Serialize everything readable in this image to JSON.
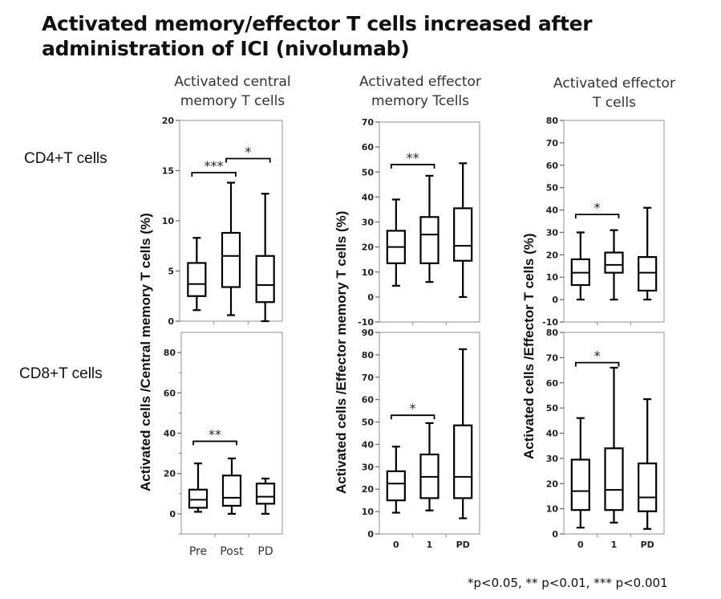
{
  "title_line1": "Activated memory/effector T cells increased after",
  "title_line2": "administration of ICI (nivolumab)",
  "footnote": "*p<0.05, ** p<0.01, *** p<0.001",
  "row_labels": [
    "CD4+T cells",
    "CD8+T cells"
  ],
  "column_titles": [
    [
      "Activated central",
      "memory T cells"
    ],
    [
      "Activated effector",
      "memory Tcells"
    ],
    [
      "Activated effector",
      "T cells"
    ]
  ],
  "y_labels": [
    "Activated cells /Central memory T cells (%)",
    "Activated cells /Effector memory T cells (%)",
    "Activated cells /Effector T cells (%)"
  ],
  "chart_data": [
    {
      "type": "box",
      "name": "central-memory-cd4",
      "row": "CD4+T cells",
      "column": "Activated central memory T cells",
      "categories": [
        "Pre",
        "Post",
        "PD"
      ],
      "show_categories": false,
      "ylim": [
        0,
        20
      ],
      "yticks": [
        0,
        5,
        10,
        15,
        20
      ],
      "boxes": [
        {
          "min": 1.1,
          "q1": 2.5,
          "median": 3.7,
          "q3": 5.8,
          "max": 8.3
        },
        {
          "min": 0.6,
          "q1": 3.4,
          "median": 6.5,
          "q3": 8.8,
          "max": 13.8
        },
        {
          "min": 0.0,
          "q1": 1.9,
          "median": 3.6,
          "q3": 6.5,
          "max": 12.7
        }
      ],
      "significance": [
        {
          "from": 0,
          "to": 1,
          "label": "***",
          "y": 14.8
        },
        {
          "from": 1,
          "to": 2,
          "label": "*",
          "y": 16.2
        }
      ]
    },
    {
      "type": "box",
      "name": "central-memory-cd8",
      "row": "CD8+T cells",
      "column": "Activated central memory T cells",
      "categories": [
        "Pre",
        "Post",
        "PD"
      ],
      "show_categories": true,
      "category_style": "plain",
      "ylim": [
        -10,
        90
      ],
      "yticks": [
        0,
        20,
        40,
        60,
        80
      ],
      "minor_yticks": [
        -10,
        10,
        30,
        50,
        70
      ],
      "boxes": [
        {
          "min": 1,
          "q1": 3,
          "median": 7,
          "q3": 12,
          "max": 25
        },
        {
          "min": 0,
          "q1": 4,
          "median": 8,
          "q3": 19,
          "max": 27.5
        },
        {
          "min": 0,
          "q1": 5,
          "median": 8.5,
          "q3": 15,
          "max": 17.5
        }
      ],
      "significance": [
        {
          "from": 0,
          "to": 1,
          "label": "**",
          "y": 36
        }
      ]
    },
    {
      "type": "box",
      "name": "effector-memory-cd4",
      "row": "CD4+T cells",
      "column": "Activated effector memory Tcells",
      "categories": [
        "0",
        "1",
        "PD"
      ],
      "show_categories": false,
      "ylim": [
        -10,
        70
      ],
      "yticks": [
        -10,
        0,
        10,
        20,
        30,
        40,
        50,
        60,
        70
      ],
      "boxes": [
        {
          "min": 4.5,
          "q1": 13.5,
          "median": 20,
          "q3": 26.5,
          "max": 39
        },
        {
          "min": 6,
          "q1": 13.5,
          "median": 25,
          "q3": 32,
          "max": 48.5
        },
        {
          "min": 0,
          "q1": 14.5,
          "median": 20.5,
          "q3": 35.5,
          "max": 53.5
        }
      ],
      "significance": [
        {
          "from": 0,
          "to": 1,
          "label": "**",
          "y": 53
        }
      ]
    },
    {
      "type": "box",
      "name": "effector-memory-cd8",
      "row": "CD8+T cells",
      "column": "Activated effector memory Tcells",
      "categories": [
        "0",
        "1",
        "PD"
      ],
      "show_categories": true,
      "category_style": "bold",
      "ylim": [
        0,
        90
      ],
      "yticks": [
        0,
        10,
        20,
        30,
        40,
        50,
        60,
        70,
        80,
        90
      ],
      "boxes": [
        {
          "min": 9.5,
          "q1": 15,
          "median": 22.5,
          "q3": 28,
          "max": 39
        },
        {
          "min": 10.5,
          "q1": 16,
          "median": 25.5,
          "q3": 35.5,
          "max": 49.5
        },
        {
          "min": 7,
          "q1": 16,
          "median": 25.5,
          "q3": 48.5,
          "max": 82.5
        }
      ],
      "significance": [
        {
          "from": 0,
          "to": 1,
          "label": "*",
          "y": 53
        }
      ]
    },
    {
      "type": "box",
      "name": "effector-cd4",
      "row": "CD4+T cells",
      "column": "Activated effector T cells",
      "categories": [
        "0",
        "1",
        "PD"
      ],
      "show_categories": false,
      "ylim": [
        -10,
        80
      ],
      "yticks": [
        -10,
        0,
        10,
        20,
        30,
        40,
        50,
        60,
        70,
        80
      ],
      "boxes": [
        {
          "min": 0,
          "q1": 6.5,
          "median": 12,
          "q3": 18,
          "max": 30
        },
        {
          "min": 0,
          "q1": 12,
          "median": 15.5,
          "q3": 21,
          "max": 31
        },
        {
          "min": 0,
          "q1": 4,
          "median": 12,
          "q3": 19,
          "max": 41
        }
      ],
      "significance": [
        {
          "from": 0,
          "to": 1,
          "label": "*",
          "y": 38
        }
      ]
    },
    {
      "type": "box",
      "name": "effector-cd8",
      "row": "CD8+T cells",
      "column": "Activated effector T cells",
      "categories": [
        "0",
        "1",
        "PD"
      ],
      "show_categories": true,
      "category_style": "bold",
      "ylim": [
        0,
        80
      ],
      "yticks": [
        0,
        10,
        20,
        30,
        40,
        50,
        60,
        70,
        80
      ],
      "boxes": [
        {
          "min": 2.5,
          "q1": 9.5,
          "median": 17,
          "q3": 29.5,
          "max": 46
        },
        {
          "min": 4.5,
          "q1": 9.5,
          "median": 17.5,
          "q3": 34,
          "max": 66
        },
        {
          "min": 2,
          "q1": 9,
          "median": 14.5,
          "q3": 28,
          "max": 53.5
        }
      ],
      "significance": [
        {
          "from": 0,
          "to": 1,
          "label": "*",
          "y": 68
        }
      ]
    }
  ]
}
